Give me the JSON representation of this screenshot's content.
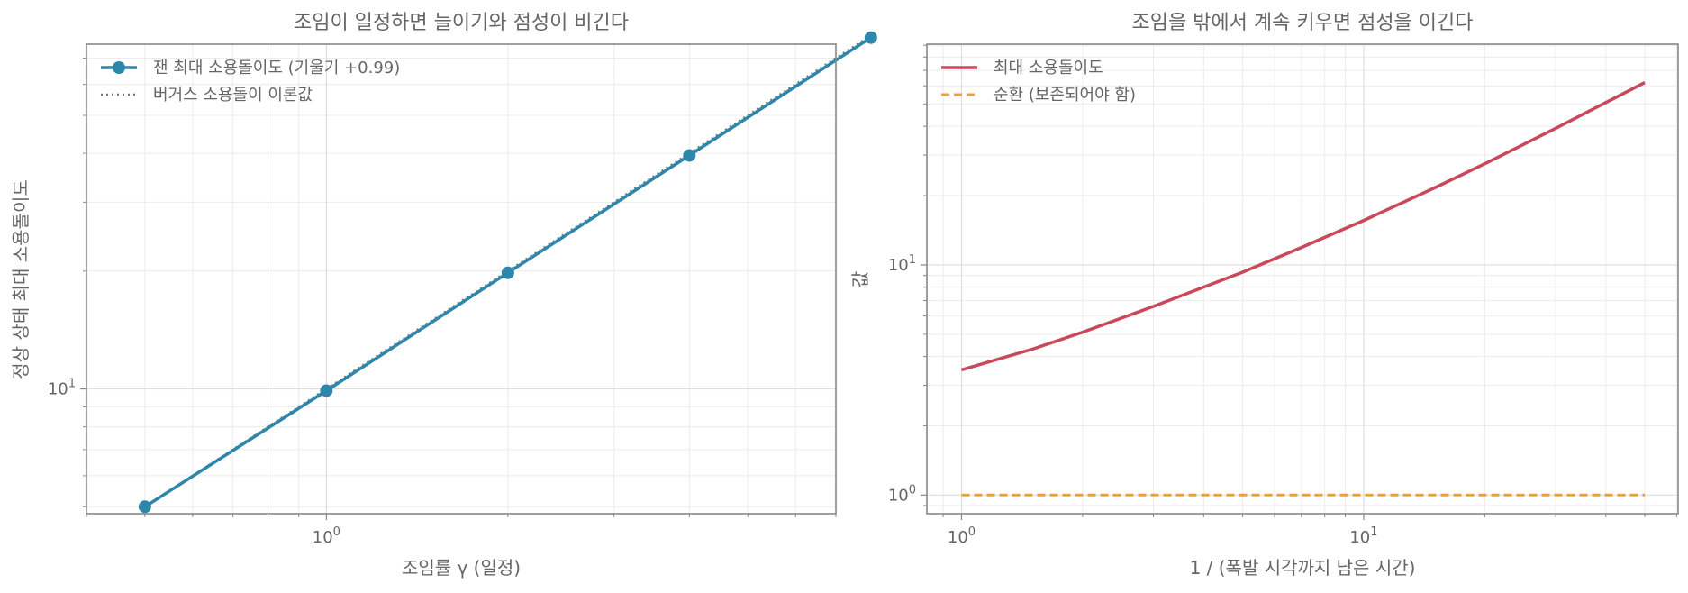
{
  "chart_data": [
    {
      "type": "line",
      "title": "조임이 일정하면 늘이기와 점성이 비긴다",
      "xlabel": "조임률 γ (일정)",
      "ylabel": "정상 상태 최대 소용돌이도",
      "xscale": "log",
      "yscale": "log",
      "xlim": [
        0.4,
        7.0
      ],
      "ylim": [
        4.8,
        76
      ],
      "grid": true,
      "legend_position": "upper-left",
      "xticks": [
        {
          "value": 1,
          "base": "10",
          "exp": "0"
        }
      ],
      "yticks": [
        {
          "value": 10,
          "base": "10",
          "exp": "1"
        }
      ],
      "series": [
        {
          "name": "잰 최대 소용돌이도 (기울기 +0.99)",
          "style": "line-markers",
          "color": "#2E86AB",
          "x": [
            0.5,
            1,
            2,
            4,
            8
          ],
          "y": [
            5.0,
            9.9,
            19.8,
            39.5,
            79.0
          ]
        },
        {
          "name": "버거스 소용돌이 이론값",
          "style": "dotted",
          "color": "#777777",
          "x": [
            0.5,
            8
          ],
          "y": [
            5.0,
            80.0
          ]
        }
      ]
    },
    {
      "type": "line",
      "title": "조임을 밖에서 계속 키우면 점성을 이긴다",
      "xlabel": "1 / (폭발 시각까지 남은 시간)",
      "ylabel": "값",
      "xscale": "log",
      "yscale": "log",
      "xlim": [
        0.82,
        60.5
      ],
      "ylim": [
        0.83,
        91
      ],
      "grid": true,
      "legend_position": "upper-left",
      "xticks": [
        {
          "value": 1,
          "base": "10",
          "exp": "0"
        },
        {
          "value": 10,
          "base": "10",
          "exp": "1"
        }
      ],
      "yticks": [
        {
          "value": 1,
          "base": "10",
          "exp": "0"
        },
        {
          "value": 10,
          "base": "10",
          "exp": "1"
        }
      ],
      "series": [
        {
          "name": "최대 소용돌이도",
          "style": "line",
          "color": "#C9485B",
          "x": [
            1,
            1.5,
            2,
            3,
            5,
            7,
            10,
            15,
            20,
            30,
            50
          ],
          "y": [
            3.5,
            4.3,
            5.1,
            6.6,
            9.3,
            11.9,
            15.6,
            21.6,
            27.5,
            39.2,
            62.0
          ]
        },
        {
          "name": "순환 (보존되어야 함)",
          "style": "dashed",
          "color": "#E8A33D",
          "x": [
            1,
            50
          ],
          "y": [
            1.0,
            1.0
          ]
        }
      ]
    }
  ]
}
